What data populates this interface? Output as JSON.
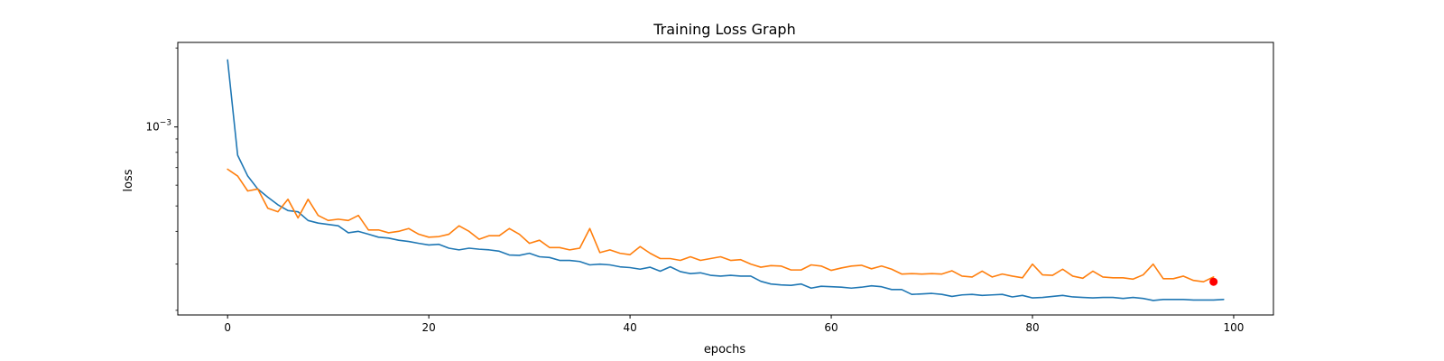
{
  "chart_data": {
    "type": "line",
    "title": "Training Loss Graph",
    "xlabel": "epochs",
    "ylabel": "loss",
    "xlim": [
      -4.95,
      103.95
    ],
    "ylim": [
      0.000192,
      0.0021
    ],
    "yscale": "log",
    "grid": false,
    "x_ticks": [
      0,
      20,
      40,
      60,
      80,
      100
    ],
    "x_tick_labels": [
      "0",
      "20",
      "40",
      "60",
      "80",
      "100"
    ],
    "y_major_ticks": [
      0.001
    ],
    "y_major_tick_labels": [
      {
        "base": "10",
        "exp": "−3"
      }
    ],
    "y_minor_ticks": [
      0.0002,
      0.0003,
      0.0004,
      0.0005,
      0.0006,
      0.0007,
      0.0008,
      0.0009,
      0.002
    ],
    "series": [
      {
        "color": "#1f77b4",
        "values": [
          0.0018,
          0.00078,
          0.00065,
          0.00058,
          0.00054,
          0.000505,
          0.00048,
          0.000475,
          0.00044,
          0.00043,
          0.000425,
          0.00042,
          0.000395,
          0.0004,
          0.00039,
          0.00038,
          0.000377,
          0.00037,
          0.000366,
          0.00036,
          0.000355,
          0.000357,
          0.000345,
          0.00034,
          0.000345,
          0.000342,
          0.00034,
          0.000336,
          0.000325,
          0.000324,
          0.00033,
          0.00032,
          0.000318,
          0.00031,
          0.00031,
          0.000307,
          0.000298,
          0.0003,
          0.000298,
          0.000293,
          0.000291,
          0.000287,
          0.000292,
          0.000282,
          0.000293,
          0.000281,
          0.000276,
          0.000278,
          0.000272,
          0.00027,
          0.000272,
          0.00027,
          0.00027,
          0.000258,
          0.000252,
          0.00025,
          0.000249,
          0.000252,
          0.000243,
          0.000247,
          0.000246,
          0.000245,
          0.000243,
          0.000245,
          0.000248,
          0.000246,
          0.00024,
          0.00024,
          0.00023,
          0.000231,
          0.000232,
          0.00023,
          0.000226,
          0.000229,
          0.00023,
          0.000228,
          0.000229,
          0.00023,
          0.000225,
          0.000228,
          0.000223,
          0.000224,
          0.000226,
          0.000228,
          0.000225,
          0.000224,
          0.000223,
          0.000224,
          0.000224,
          0.000222,
          0.000224,
          0.000222,
          0.000218,
          0.00022,
          0.00022,
          0.00022,
          0.000219,
          0.000219,
          0.000219,
          0.00022
        ]
      },
      {
        "color": "#ff7f0e",
        "values": [
          0.00069,
          0.00065,
          0.00057,
          0.00058,
          0.00049,
          0.000475,
          0.00053,
          0.00045,
          0.00053,
          0.00046,
          0.00044,
          0.000445,
          0.00044,
          0.00046,
          0.000405,
          0.000405,
          0.000395,
          0.0004,
          0.00041,
          0.00039,
          0.00038,
          0.000382,
          0.00039,
          0.00042,
          0.0004,
          0.000373,
          0.000385,
          0.000385,
          0.00041,
          0.00039,
          0.00036,
          0.00037,
          0.000347,
          0.000347,
          0.00034,
          0.000345,
          0.00041,
          0.000332,
          0.00034,
          0.00033,
          0.000326,
          0.00035,
          0.00033,
          0.000315,
          0.000315,
          0.00031,
          0.00032,
          0.00031,
          0.000315,
          0.00032,
          0.00031,
          0.000312,
          0.0003,
          0.000292,
          0.000296,
          0.000295,
          0.000285,
          0.000285,
          0.000298,
          0.000295,
          0.000284,
          0.00029,
          0.000295,
          0.000297,
          0.000288,
          0.000295,
          0.000287,
          0.000275,
          0.000276,
          0.000275,
          0.000276,
          0.000275,
          0.000283,
          0.00027,
          0.000268,
          0.000282,
          0.000268,
          0.000275,
          0.00027,
          0.000266,
          0.0003,
          0.000273,
          0.000272,
          0.000287,
          0.00027,
          0.000265,
          0.000282,
          0.000268,
          0.000266,
          0.000266,
          0.000263,
          0.000273,
          0.0003,
          0.000264,
          0.000264,
          0.00027,
          0.00026,
          0.000257,
          0.000268
        ]
      }
    ],
    "markers": [
      {
        "x": 98,
        "y": 0.000257,
        "color": "#ff0000"
      }
    ]
  }
}
